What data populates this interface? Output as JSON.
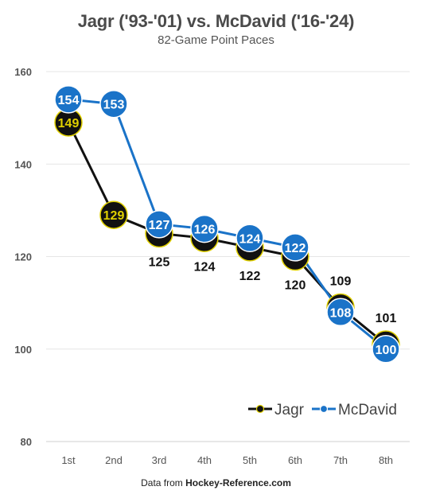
{
  "title": "Jagr ('93-'01) vs. McDavid ('16-'24)",
  "subtitle": "82-Game Point Paces",
  "source_prefix": "Data from ",
  "source_site": "Hockey-Reference.com",
  "colors": {
    "jagr_fill": "#111111",
    "jagr_ring": "#e0d000",
    "jagr_label": "#e0d000",
    "mcdavid": "#1a73c8",
    "grid": "#e6e6e6",
    "axis_text": "#555555"
  },
  "chart_data": {
    "type": "line",
    "title": "Jagr ('93-'01) vs. McDavid ('16-'24)",
    "subtitle": "82-Game Point Paces",
    "categories": [
      "1st",
      "2nd",
      "3rd",
      "4th",
      "5th",
      "6th",
      "7th",
      "8th"
    ],
    "ylim": [
      80,
      160
    ],
    "yticks": [
      80,
      100,
      120,
      140,
      160
    ],
    "grid": true,
    "legend_position": "bottom-right",
    "series": [
      {
        "name": "Jagr",
        "values": [
          149,
          129,
          125,
          124,
          122,
          120,
          109,
          101
        ]
      },
      {
        "name": "McDavid",
        "values": [
          154,
          153,
          127,
          126,
          124,
          122,
          108,
          100
        ]
      }
    ]
  }
}
